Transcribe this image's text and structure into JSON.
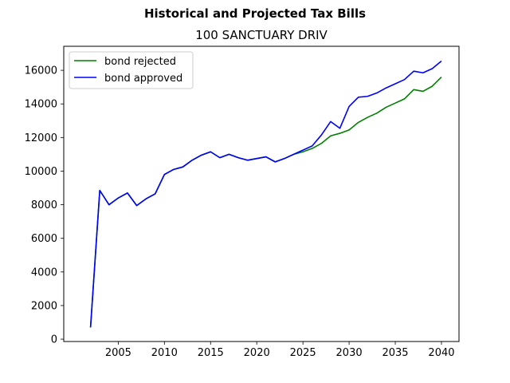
{
  "chart_data": {
    "type": "line",
    "title": "Historical and Projected Tax Bills",
    "subtitle": "100 SANCTUARY DRIV",
    "xlabel": "",
    "ylabel": "",
    "xlim": [
      1999.1,
      2041.9
    ],
    "ylim": [
      -140,
      17430
    ],
    "x_ticks": [
      2005,
      2010,
      2015,
      2020,
      2025,
      2030,
      2035,
      2040
    ],
    "y_ticks": [
      0,
      2000,
      4000,
      6000,
      8000,
      10000,
      12000,
      14000,
      16000
    ],
    "grid": false,
    "legend_position": "top-left",
    "series": [
      {
        "name": "bond rejected",
        "color": "#008000",
        "x": [
          2002,
          2003,
          2004,
          2005,
          2006,
          2007,
          2008,
          2009,
          2010,
          2011,
          2012,
          2013,
          2014,
          2015,
          2016,
          2017,
          2018,
          2019,
          2020,
          2021,
          2022,
          2023,
          2024,
          2025,
          2026,
          2027,
          2028,
          2029,
          2030,
          2031,
          2032,
          2033,
          2034,
          2035,
          2036,
          2037,
          2038,
          2039,
          2040
        ],
        "values": [
          700,
          8850,
          8000,
          8400,
          8700,
          7950,
          8350,
          8650,
          9800,
          10100,
          10250,
          10650,
          10950,
          11150,
          10800,
          11000,
          10800,
          10650,
          10750,
          10850,
          10550,
          10750,
          11000,
          11150,
          11350,
          11650,
          12100,
          12250,
          12450,
          12900,
          13200,
          13450,
          13800,
          14050,
          14300,
          14850,
          14750,
          15050,
          15600
        ]
      },
      {
        "name": "bond approved",
        "color": "#0000ff",
        "x": [
          2002,
          2003,
          2004,
          2005,
          2006,
          2007,
          2008,
          2009,
          2010,
          2011,
          2012,
          2013,
          2014,
          2015,
          2016,
          2017,
          2018,
          2019,
          2020,
          2021,
          2022,
          2023,
          2024,
          2025,
          2026,
          2027,
          2028,
          2029,
          2030,
          2031,
          2032,
          2033,
          2034,
          2035,
          2036,
          2037,
          2038,
          2039,
          2040
        ],
        "values": [
          700,
          8850,
          8000,
          8400,
          8700,
          7950,
          8350,
          8650,
          9800,
          10100,
          10250,
          10650,
          10950,
          11150,
          10800,
          11000,
          10800,
          10650,
          10750,
          10850,
          10550,
          10750,
          11000,
          11250,
          11500,
          12150,
          12950,
          12550,
          13850,
          14400,
          14450,
          14650,
          14950,
          15200,
          15450,
          15950,
          15850,
          16100,
          16550
        ]
      }
    ]
  }
}
